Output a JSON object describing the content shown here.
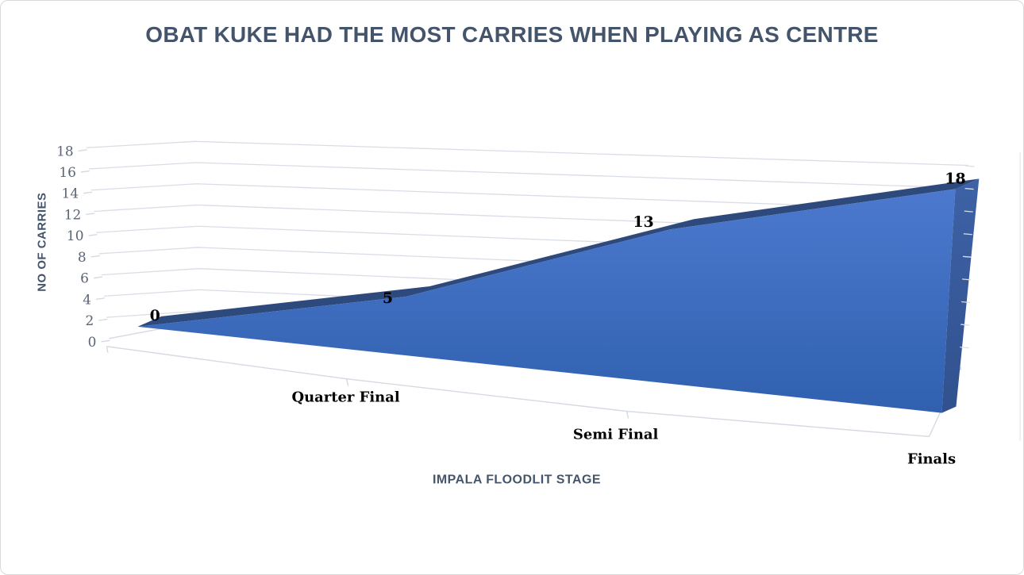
{
  "title": {
    "text": "OBAT KUKE HAD THE MOST CARRIES WHEN PLAYING AS CENTRE"
  },
  "chart_data": {
    "type": "area",
    "projection": "3d",
    "title": "OBAT KUKE HAD THE MOST CARRIES WHEN PLAYING AS CENTRE",
    "categories": [
      "",
      "Quarter Final",
      "Semi Final",
      "Finals"
    ],
    "visible_category_labels": [
      "Quarter Final",
      "Semi Final",
      "Finals"
    ],
    "series": [
      {
        "name": "No of carries",
        "values": [
          0,
          5,
          13,
          18
        ]
      }
    ],
    "data_labels": [
      "0",
      "5",
      "13",
      "18"
    ],
    "xlabel": "IMPALA FLOODLIT STAGE",
    "ylabel": "NO OF CARRIES",
    "ylim": [
      0,
      18
    ],
    "y_ticks": [
      0,
      2,
      4,
      6,
      8,
      10,
      12,
      14,
      16,
      18
    ],
    "grid": true,
    "legend": "none"
  },
  "colors": {
    "background": "#FFFFFF",
    "border": "#D9D9D9",
    "grid": "#D9DDE6",
    "floor_line": "#D4D9E2",
    "wall_edge": "#E4E7ED",
    "area_top": "#4C79CE",
    "area_bottom": "#3060AF",
    "ridge": "#2E4A7D",
    "end_cap_top": "#3E62A7",
    "end_cap_bottom": "#31518E",
    "title": "#44546A",
    "axis_title": "#44546A",
    "tick_label": "#5A6474",
    "data_label": "#000000"
  }
}
